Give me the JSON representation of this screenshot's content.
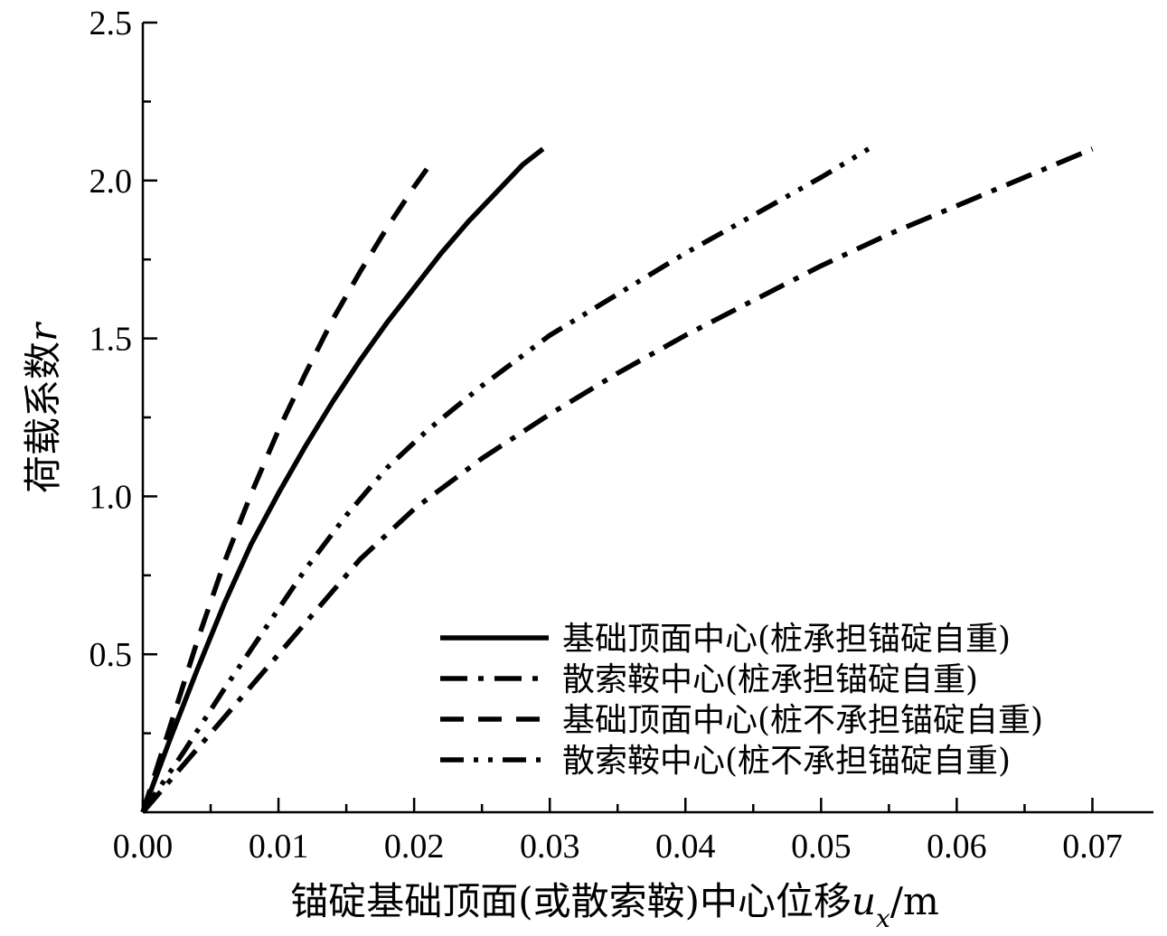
{
  "chart_data": {
    "type": "line",
    "title": "",
    "xlabel": "锚碇基础顶面(或散索鞍)中心位移",
    "xlabel_var": "u",
    "xlabel_sub": "x",
    "xlabel_unit": "/m",
    "ylabel": "荷载系数",
    "ylabel_var": "r",
    "xlim": [
      0,
      0.0745
    ],
    "ylim": [
      0,
      2.5
    ],
    "xticks": [
      "0.00",
      "0.01",
      "0.02",
      "0.03",
      "0.04",
      "0.05",
      "0.06",
      "0.07"
    ],
    "yticks": [
      "0.5",
      "1.0",
      "1.5",
      "2.0",
      "2.5"
    ],
    "grid": false,
    "legend_position": "bottom-right",
    "series": [
      {
        "name": "基础顶面中心(桩承担锚碇自重)",
        "style": "solid",
        "x": [
          0,
          0.002,
          0.004,
          0.006,
          0.008,
          0.01,
          0.012,
          0.014,
          0.016,
          0.018,
          0.02,
          0.022,
          0.024,
          0.026,
          0.028,
          0.0295
        ],
        "y": [
          0,
          0.23,
          0.45,
          0.66,
          0.85,
          1.01,
          1.16,
          1.3,
          1.43,
          1.55,
          1.66,
          1.77,
          1.87,
          1.96,
          2.05,
          2.1
        ]
      },
      {
        "name": "散索鞍中心(桩承担锚碇自重)",
        "style": "dash-dot",
        "x": [
          0,
          0.004,
          0.008,
          0.012,
          0.016,
          0.02,
          0.025,
          0.03,
          0.035,
          0.04,
          0.045,
          0.05,
          0.055,
          0.06,
          0.065,
          0.07
        ],
        "y": [
          0,
          0.2,
          0.4,
          0.6,
          0.8,
          0.96,
          1.12,
          1.26,
          1.39,
          1.51,
          1.62,
          1.73,
          1.83,
          1.92,
          2.01,
          2.1
        ]
      },
      {
        "name": "基础顶面中心(桩不承担锚碇自重)",
        "style": "dash",
        "x": [
          0,
          0.002,
          0.004,
          0.006,
          0.008,
          0.01,
          0.012,
          0.014,
          0.016,
          0.018,
          0.02,
          0.0215
        ],
        "y": [
          0,
          0.27,
          0.54,
          0.79,
          1.01,
          1.21,
          1.39,
          1.56,
          1.71,
          1.85,
          1.98,
          2.07
        ]
      },
      {
        "name": "散索鞍中心(桩不承担锚碇自重)",
        "style": "dash-dot-dot",
        "x": [
          0,
          0.003,
          0.006,
          0.009,
          0.012,
          0.015,
          0.018,
          0.021,
          0.025,
          0.03,
          0.035,
          0.04,
          0.045,
          0.05,
          0.0535
        ],
        "y": [
          0,
          0.19,
          0.39,
          0.58,
          0.77,
          0.94,
          1.09,
          1.21,
          1.35,
          1.51,
          1.64,
          1.77,
          1.89,
          2.01,
          2.1
        ]
      }
    ]
  }
}
